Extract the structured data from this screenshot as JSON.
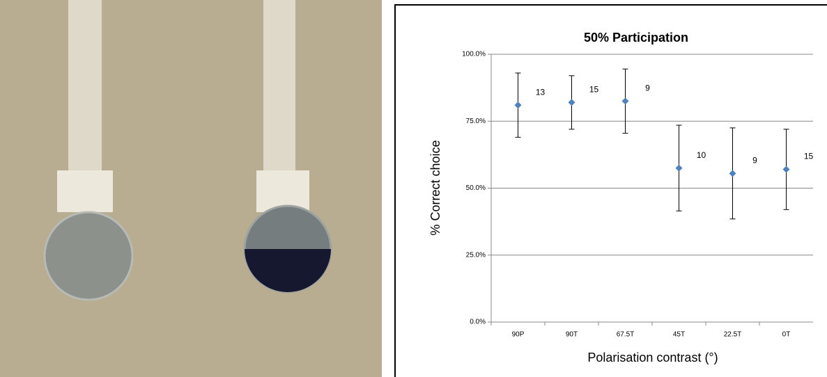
{
  "chart_data": {
    "type": "errorbar",
    "title": "50% Participation",
    "x_label": "Polarisation contrast (°)",
    "y_label": "% Correct choice",
    "categories": [
      "90P",
      "90T",
      "67.5T",
      "45T",
      "22.5T",
      "0T"
    ],
    "values": [
      81,
      82,
      82.5,
      57.5,
      55.5,
      57
    ],
    "errors": [
      12,
      10,
      12,
      16,
      17,
      15
    ],
    "sample_sizes": [
      "13",
      "15",
      "9",
      "10",
      "9",
      "15"
    ],
    "color": "#4f81bd",
    "ylim": [
      0,
      100
    ],
    "yticks": [
      {
        "value": 0,
        "label": "0.0%"
      },
      {
        "value": 25,
        "label": "25.0%"
      },
      {
        "value": 50,
        "label": "50.0%"
      },
      {
        "value": 75,
        "label": "75.0%"
      },
      {
        "value": 100,
        "label": "100.0%"
      }
    ],
    "grid": true
  }
}
